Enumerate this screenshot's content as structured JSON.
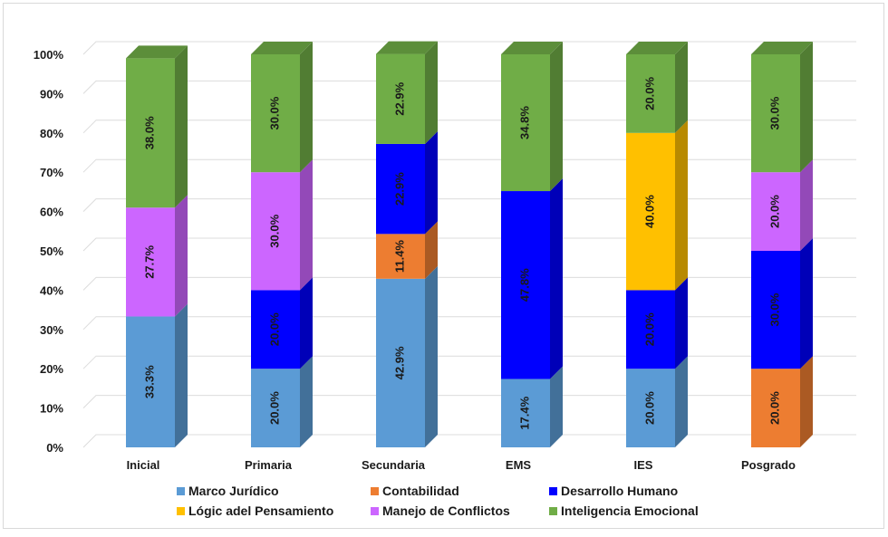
{
  "chart_data": {
    "type": "bar",
    "stacked": true,
    "percent": true,
    "categories": [
      "Inicial",
      "Primaria",
      "Secundaria",
      "EMS",
      "IES",
      "Posgrado"
    ],
    "ylim": [
      0,
      100
    ],
    "yticks": [
      "0%",
      "10%",
      "20%",
      "30%",
      "40%",
      "50%",
      "60%",
      "70%",
      "80%",
      "90%",
      "100%"
    ],
    "grid": true,
    "legend_position": "bottom",
    "series": [
      {
        "name": "Marco Jurídico",
        "color": "#5B9BD5",
        "values": [
          33.3,
          20.0,
          42.9,
          17.4,
          20.0,
          0
        ],
        "labels": [
          "33.3%",
          "20.0%",
          "42.9%",
          "17.4%",
          "20.0%",
          ""
        ]
      },
      {
        "name": "Contabilidad",
        "color": "#ED7D31",
        "values": [
          0,
          0,
          11.4,
          0,
          0,
          20.0
        ],
        "labels": [
          "",
          "",
          "11.4%",
          "",
          "",
          "20.0%"
        ]
      },
      {
        "name": "Desarrollo Humano",
        "color": "#0000FF",
        "values": [
          0,
          20.0,
          22.9,
          47.8,
          20.0,
          30.0
        ],
        "labels": [
          "",
          "20.0%",
          "22.9%",
          "47.8%",
          "20.0%",
          "30.0%"
        ]
      },
      {
        "name": "Lógic adel Pensamiento",
        "color": "#FFC000",
        "values": [
          0,
          0,
          0,
          0,
          40.0,
          0
        ],
        "labels": [
          "",
          "",
          "",
          "",
          "40.0%",
          ""
        ]
      },
      {
        "name": "Manejo de Conflictos",
        "color": "#CC66FF",
        "values": [
          27.7,
          30.0,
          0,
          0,
          0,
          20.0
        ],
        "labels": [
          "27.7%",
          "30.0%",
          "",
          "",
          "",
          "20.0%"
        ]
      },
      {
        "name": "Inteligencia Emocional",
        "color": "#70AD47",
        "values": [
          38.0,
          30.0,
          22.9,
          34.8,
          20.0,
          30.0
        ],
        "labels": [
          "38.0%",
          "30.0%",
          "22.9%",
          "34.8%",
          "20.0%",
          "30.0%"
        ]
      }
    ]
  }
}
